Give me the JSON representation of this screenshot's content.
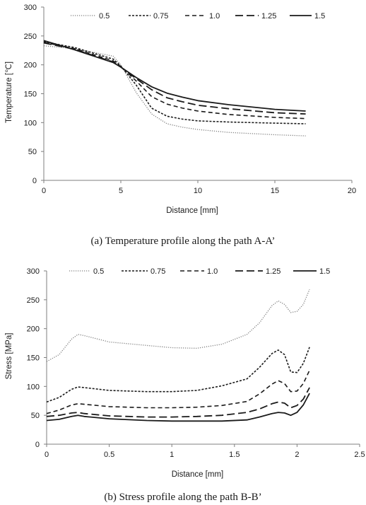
{
  "chart_data": [
    {
      "type": "line",
      "caption": "(a) Temperature profile along the path A-A’",
      "xlabel": "Distance [mm]",
      "ylabel": "Temperature [℃]",
      "xlim": [
        0,
        20
      ],
      "ylim": [
        0,
        300
      ],
      "xticks": [
        0,
        5,
        10,
        15,
        20
      ],
      "yticks": [
        0,
        50,
        100,
        150,
        200,
        250,
        300
      ],
      "grid": false,
      "legend_position": "top",
      "series": [
        {
          "name": "0.5",
          "style": "dotted",
          "color": "#808080",
          "x": [
            0,
            2,
            4.5,
            5,
            6,
            7,
            8,
            9,
            10,
            12,
            15,
            17
          ],
          "y": [
            233,
            228,
            215,
            200,
            152,
            115,
            98,
            92,
            88,
            83,
            79,
            77
          ]
        },
        {
          "name": "0.75",
          "style": "short-dash",
          "color": "#1a1a1a",
          "x": [
            0,
            2,
            4.5,
            5,
            6,
            7,
            8,
            9,
            10,
            12,
            15,
            17
          ],
          "y": [
            240,
            230,
            210,
            198,
            165,
            125,
            111,
            106,
            103,
            101,
            99,
            98
          ]
        },
        {
          "name": "1.0",
          "style": "dash",
          "color": "#1a1a1a",
          "x": [
            0,
            2,
            4.5,
            5,
            6,
            7,
            8,
            9,
            10,
            12,
            15,
            17
          ],
          "y": [
            239,
            228,
            207,
            197,
            172,
            145,
            132,
            125,
            120,
            114,
            109,
            107
          ]
        },
        {
          "name": "1.25",
          "style": "long-dash",
          "color": "#1a1a1a",
          "x": [
            0,
            2,
            4.5,
            5,
            6,
            7,
            8,
            9,
            10,
            12,
            15,
            17
          ],
          "y": [
            238,
            227,
            205,
            196,
            176,
            157,
            143,
            136,
            130,
            124,
            117,
            115
          ]
        },
        {
          "name": "1.5",
          "style": "solid",
          "color": "#1a1a1a",
          "x": [
            0,
            2,
            4.5,
            5,
            6,
            7,
            8,
            9,
            10,
            12,
            15,
            17
          ],
          "y": [
            242,
            226,
            204,
            196,
            178,
            162,
            151,
            144,
            138,
            131,
            123,
            120
          ]
        }
      ]
    },
    {
      "type": "line",
      "caption": "(b) Stress profile along the path B-B’",
      "xlabel": "Distance [mm]",
      "ylabel": "Stress [MPa]",
      "xlim": [
        0,
        2.5
      ],
      "ylim": [
        0,
        300
      ],
      "xticks": [
        0,
        0.5,
        1,
        1.5,
        2,
        2.5
      ],
      "yticks": [
        0,
        50,
        100,
        150,
        200,
        250,
        300
      ],
      "grid": false,
      "legend_position": "top",
      "series": [
        {
          "name": "0.5",
          "style": "dotted",
          "color": "#808080",
          "x": [
            0,
            0.1,
            0.2,
            0.25,
            0.3,
            0.5,
            0.8,
            1.0,
            1.2,
            1.4,
            1.6,
            1.7,
            1.8,
            1.85,
            1.9,
            1.95,
            2.0,
            2.05,
            2.1
          ],
          "y": [
            143,
            155,
            182,
            190,
            188,
            177,
            171,
            167,
            166,
            173,
            190,
            210,
            240,
            248,
            242,
            228,
            230,
            242,
            268
          ]
        },
        {
          "name": "0.75",
          "style": "short-dash",
          "color": "#1a1a1a",
          "x": [
            0,
            0.1,
            0.2,
            0.25,
            0.3,
            0.5,
            0.8,
            1.0,
            1.2,
            1.4,
            1.6,
            1.7,
            1.8,
            1.85,
            1.9,
            1.95,
            2.0,
            2.05,
            2.1
          ],
          "y": [
            73,
            81,
            95,
            99,
            98,
            93,
            91,
            91,
            93,
            101,
            113,
            133,
            157,
            163,
            155,
            125,
            124,
            140,
            168
          ]
        },
        {
          "name": "1.0",
          "style": "dash",
          "color": "#1a1a1a",
          "x": [
            0,
            0.1,
            0.2,
            0.25,
            0.3,
            0.5,
            0.8,
            1.0,
            1.2,
            1.4,
            1.6,
            1.7,
            1.8,
            1.85,
            1.9,
            1.95,
            2.0,
            2.05,
            2.1
          ],
          "y": [
            53,
            59,
            68,
            70,
            69,
            65,
            63,
            63,
            64,
            67,
            74,
            87,
            104,
            110,
            105,
            91,
            92,
            105,
            128
          ]
        },
        {
          "name": "1.25",
          "style": "long-dash",
          "color": "#1a1a1a",
          "x": [
            0,
            0.1,
            0.2,
            0.25,
            0.3,
            0.5,
            0.8,
            1.0,
            1.2,
            1.4,
            1.6,
            1.7,
            1.8,
            1.85,
            1.9,
            1.95,
            2.0,
            2.05,
            2.1
          ],
          "y": [
            48,
            50,
            54,
            55,
            53,
            49,
            47,
            47,
            48,
            50,
            55,
            61,
            70,
            73,
            71,
            63,
            67,
            78,
            98
          ]
        },
        {
          "name": "1.5",
          "style": "solid",
          "color": "#1a1a1a",
          "x": [
            0,
            0.1,
            0.2,
            0.25,
            0.3,
            0.5,
            0.8,
            1.0,
            1.2,
            1.4,
            1.6,
            1.7,
            1.8,
            1.85,
            1.9,
            1.95,
            2.0,
            2.05,
            2.1
          ],
          "y": [
            41,
            43,
            48,
            50,
            48,
            44,
            41,
            40,
            40,
            40,
            42,
            47,
            53,
            55,
            54,
            50,
            55,
            68,
            88
          ]
        }
      ]
    }
  ]
}
